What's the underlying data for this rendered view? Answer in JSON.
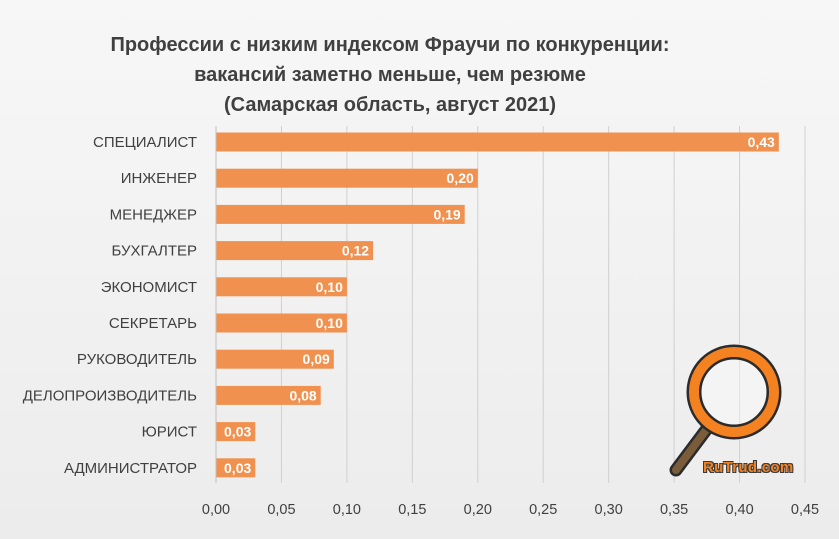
{
  "chart_data": {
    "type": "bar",
    "orientation": "horizontal",
    "title_lines": [
      "Профессии с низким индексом Фраучи по конкуренции:",
      "вакансий заметно меньше, чем резюме",
      "(Самарская  область, август 2021)"
    ],
    "categories": [
      "СПЕЦИАЛИСТ",
      "ИНЖЕНЕР",
      "МЕНЕДЖЕР",
      "БУХГАЛТЕР",
      "ЭКОНОМИСТ",
      "СЕКРЕТАРЬ",
      "РУКОВОДИТЕЛЬ",
      "ДЕЛОПРОИЗВОДИТЕЛЬ",
      "ЮРИСТ",
      "АДМИНИСТРАТОР"
    ],
    "values": [
      0.43,
      0.2,
      0.19,
      0.12,
      0.1,
      0.1,
      0.09,
      0.08,
      0.03,
      0.03
    ],
    "value_labels": [
      "0,43",
      "0,20",
      "0,19",
      "0,12",
      "0,10",
      "0,10",
      "0,09",
      "0,08",
      "0,03",
      "0,03"
    ],
    "xlim": [
      0,
      0.45
    ],
    "x_ticks": [
      0,
      0.05,
      0.1,
      0.15,
      0.2,
      0.25,
      0.3,
      0.35,
      0.4,
      0.45
    ],
    "x_tick_labels": [
      "0,00",
      "0,05",
      "0,10",
      "0,15",
      "0,20",
      "0,25",
      "0,30",
      "0,35",
      "0,40",
      "0,45"
    ],
    "grid": true,
    "bar_color": "#f0914f",
    "grid_color": "#d0d0d0",
    "text_color": "#404040"
  },
  "watermark": {
    "text": "RuTrud.com",
    "icon": "magnifier-icon",
    "ring_color": "#f58220"
  }
}
